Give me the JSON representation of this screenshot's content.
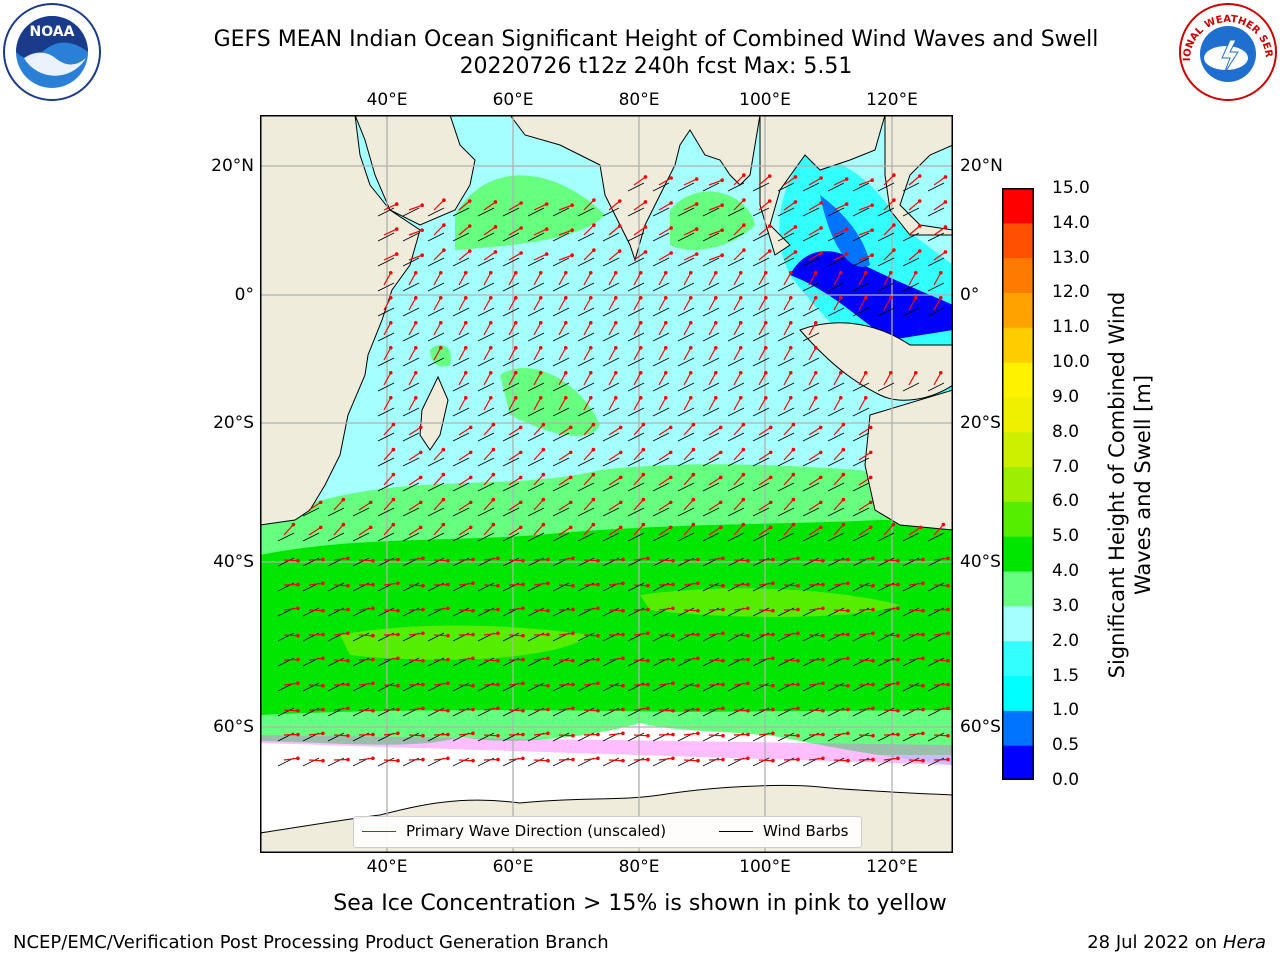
{
  "title": {
    "line1": "GEFS MEAN Indian Ocean Significant Height of Combined Wind Waves and Swell",
    "line2": "20220726 t12z 240h fcst   Max: 5.51"
  },
  "logos": {
    "left": {
      "icon": "noaa-logo",
      "text": "NOAA"
    },
    "right": {
      "icon": "nws-logo",
      "text": "NATIONAL WEATHER SERVICE"
    }
  },
  "map": {
    "lon_labels": [
      "40°E",
      "60°E",
      "80°E",
      "100°E",
      "120°E"
    ],
    "lat_labels": [
      "20°N",
      "0°",
      "20°S",
      "40°S",
      "60°S"
    ],
    "colors": {
      "land": "#efecdc",
      "ice": "#ffffff",
      "grid": "#b0b0b0",
      "arrow": "#ff0000",
      "barb": "#000000"
    }
  },
  "legend": {
    "items": [
      {
        "label": "Primary Wave Direction (unscaled)",
        "color": "#ff0000"
      },
      {
        "label": "Wind Barbs",
        "color": "#000000"
      }
    ]
  },
  "colorbar": {
    "title": "Significant Height of Combined Wind Waves and Swell [m]",
    "ticks": [
      "0.0",
      "0.5",
      "1.0",
      "1.5",
      "2.0",
      "3.0",
      "4.0",
      "5.0",
      "6.0",
      "7.0",
      "8.0",
      "9.0",
      "10.0",
      "11.0",
      "12.0",
      "13.0",
      "14.0",
      "15.0"
    ],
    "colors": [
      "#0000ff",
      "#0073ff",
      "#00ffff",
      "#33ffff",
      "#a6ffff",
      "#66ff80",
      "#00e600",
      "#55ee00",
      "#9dee00",
      "#ccf000",
      "#eef000",
      "#fff200",
      "#ffcc00",
      "#ffa200",
      "#ff7a00",
      "#ff5000",
      "#ff0000"
    ]
  },
  "footnote": "Sea Ice Concentration > 15% is shown in pink to yellow",
  "credits": {
    "left": "NCEP/EMC/Verification Post Processing Product Generation Branch",
    "right_date": "28 Jul 2022 on ",
    "right_machine": "Hera"
  }
}
